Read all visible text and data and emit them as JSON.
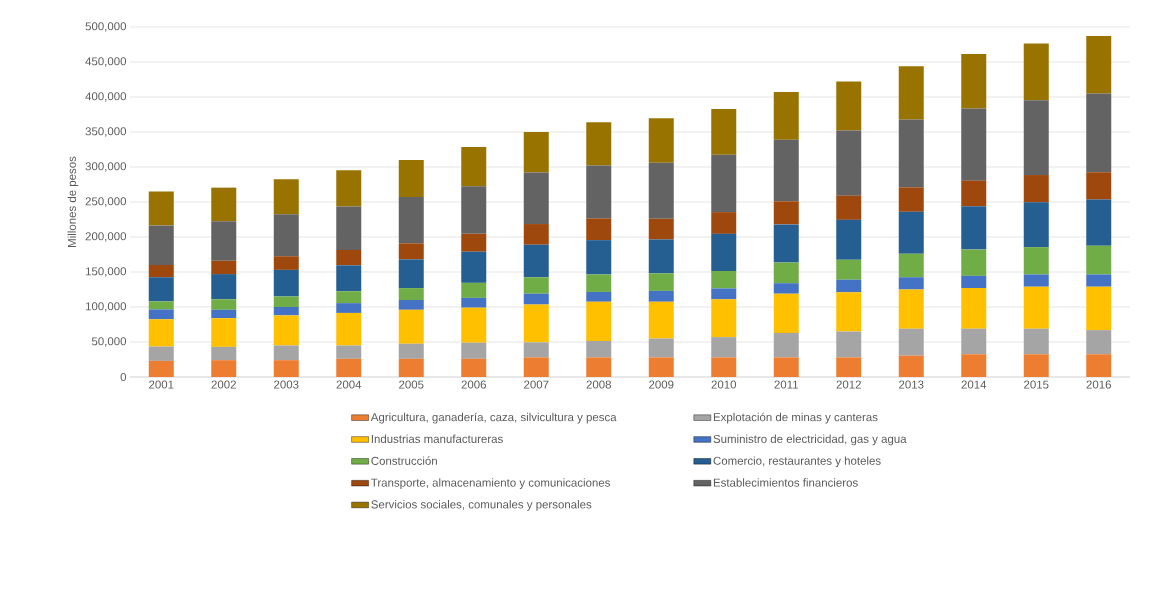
{
  "chart_data": {
    "type": "bar",
    "stacked": true,
    "ylabel": "Millones de pesos",
    "categories": [
      "2001",
      "2002",
      "2003",
      "2004",
      "2005",
      "2006",
      "2007",
      "2008",
      "2009",
      "2010",
      "2011",
      "2012",
      "2013",
      "2014",
      "2015",
      "2016"
    ],
    "series": [
      {
        "name": "Agricultura, ganadería, caza, silvicultura y pesca",
        "color": "#ed7d31",
        "values": [
          23000,
          24000,
          24000,
          26000,
          26000,
          26000,
          28000,
          28000,
          28000,
          28000,
          28000,
          28000,
          30500,
          32500,
          32500,
          32500
        ]
      },
      {
        "name": "Explotación de minas y canteras",
        "color": "#a5a5a5",
        "values": [
          20500,
          19000,
          21000,
          19000,
          21500,
          23000,
          21500,
          23500,
          27000,
          29000,
          35000,
          37000,
          38500,
          36500,
          36500,
          34500
        ]
      },
      {
        "name": "Industrias manufactureras",
        "color": "#ffc000",
        "values": [
          39000,
          41000,
          43000,
          46500,
          48500,
          50000,
          54000,
          56000,
          52500,
          54000,
          56000,
          56000,
          56000,
          58000,
          60000,
          62000
        ]
      },
      {
        "name": "Suministro de electricidad, gas y agua",
        "color": "#4472c4",
        "values": [
          14000,
          12000,
          12000,
          14000,
          14000,
          14000,
          15500,
          14000,
          15500,
          15500,
          15000,
          18000,
          17500,
          17500,
          17500,
          17500
        ]
      },
      {
        "name": "Construcción",
        "color": "#70ad47",
        "values": [
          11500,
          15000,
          15000,
          17000,
          17000,
          21500,
          23500,
          25000,
          25000,
          25000,
          29500,
          28500,
          33500,
          37500,
          39000,
          41000
        ]
      },
      {
        "name": "Comercio,  restaurantes y hoteles",
        "color": "#255e91",
        "values": [
          34500,
          36000,
          38000,
          37000,
          41000,
          44500,
          46500,
          49000,
          48500,
          53000,
          54500,
          57000,
          60000,
          62000,
          64000,
          66000
        ]
      },
      {
        "name": "Transporte, almacenamiento y comunicaciones",
        "color": "#9e480e",
        "values": [
          17500,
          19000,
          19500,
          22000,
          23000,
          25500,
          29500,
          31000,
          29500,
          31000,
          33000,
          34500,
          35000,
          36500,
          39000,
          39000
        ]
      },
      {
        "name": "Establecimientos financieros",
        "color": "#636363",
        "values": [
          56500,
          56500,
          60000,
          62000,
          66000,
          68000,
          73500,
          75500,
          80000,
          82000,
          88000,
          93000,
          97000,
          103000,
          107000,
          112500
        ]
      },
      {
        "name": "Servicios sociales, comunales y personales",
        "color": "#997300",
        "values": [
          48500,
          48000,
          50000,
          52000,
          53000,
          56000,
          58000,
          62000,
          63500,
          65500,
          68000,
          70000,
          76000,
          78000,
          81000,
          82000
        ]
      }
    ],
    "ylim": [
      0,
      500000
    ],
    "yticks": [
      0,
      {
        "value": 50000,
        "label": "50,000"
      },
      {
        "value": 100000,
        "label": "100,000"
      },
      {
        "value": 150000,
        "label": "150,000"
      },
      {
        "value": 200000,
        "label": "200,000"
      },
      {
        "value": 250000,
        "label": "250,000"
      },
      {
        "value": 300000,
        "label": "300,000"
      },
      {
        "value": 350000,
        "label": "350,000"
      },
      {
        "value": 400000,
        "label": "400,000"
      },
      {
        "value": 450000,
        "label": "450,000"
      },
      {
        "value": 500000,
        "label": "500,000"
      }
    ],
    "grid": "y",
    "legend": "bottom"
  }
}
